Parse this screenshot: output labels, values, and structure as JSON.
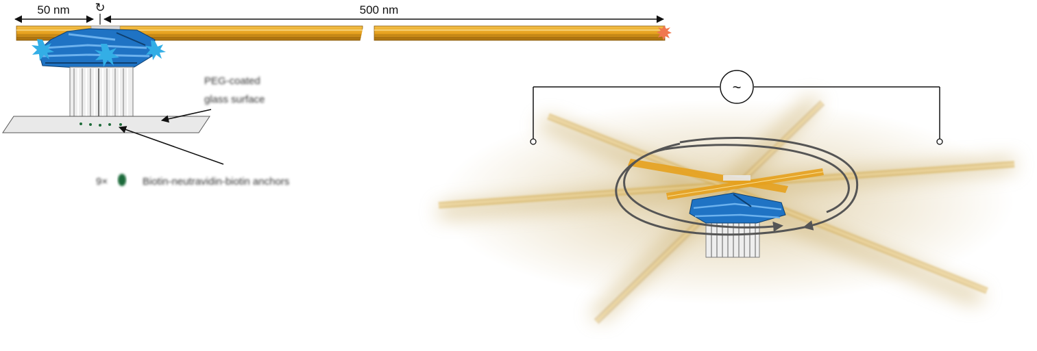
{
  "left_panel": {
    "dimension_short": "50 nm",
    "dimension_long": "500 nm",
    "rotation_symbol": "↻",
    "surface_label_line1": "PEG-coated",
    "surface_label_line2": "glass surface",
    "anchor_count": "9×",
    "anchor_label": "Biotin-neutravidin-biotin anchors"
  },
  "right_panel": {
    "ac_source_symbol": "~"
  },
  "colors": {
    "lever_yellow": "#e6a11e",
    "lever_dark": "#9a6a10",
    "origami_blue": "#1f73c4",
    "star_blue": "#33aee6",
    "star_orange": "#f07850",
    "bundle_white": "#f2f2f2",
    "neutravidin_green": "#1f6b3a",
    "halo_color": "#c8aa64"
  }
}
